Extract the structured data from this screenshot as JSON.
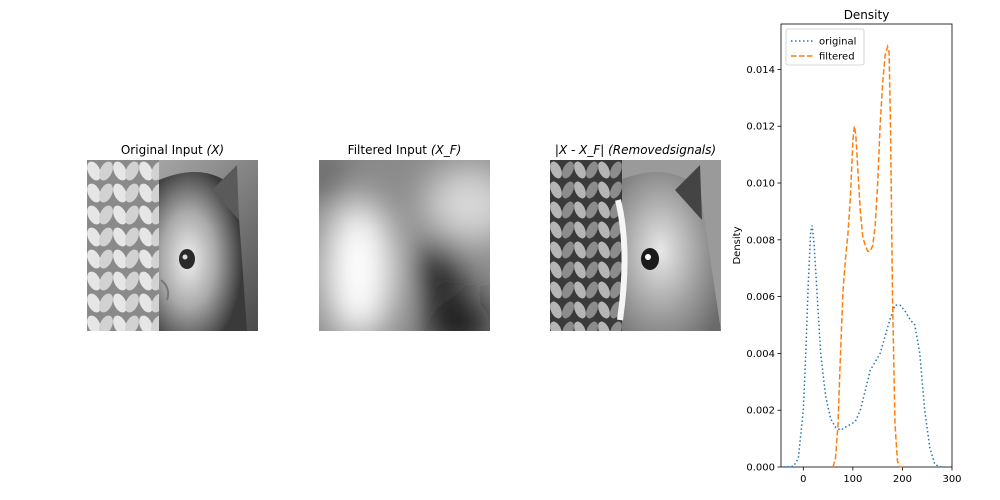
{
  "panels": [
    {
      "title": "Original Input ",
      "math": "(X)"
    },
    {
      "title": "Filtered Input ",
      "math": "(X_F)"
    },
    {
      "title": "",
      "math": "|X - X_F| (Removedsignals)"
    }
  ],
  "chart_data": {
    "type": "line",
    "title": "Density",
    "xlabel": "",
    "ylabel": "Density",
    "xlim": [
      -45,
      300
    ],
    "ylim": [
      0,
      0.0156
    ],
    "xticks": [
      0,
      100,
      200,
      300
    ],
    "yticks": [
      0.0,
      0.002,
      0.004,
      0.006,
      0.008,
      0.01,
      0.012,
      0.014
    ],
    "ytick_labels": [
      "0.000",
      "0.002",
      "0.004",
      "0.006",
      "0.008",
      "0.010",
      "0.012",
      "0.014"
    ],
    "legend_position": "upper-left",
    "grid": false,
    "series": [
      {
        "name": "original",
        "style": "dotted",
        "color": "#1f77b4",
        "x": [
          -40,
          -20,
          -10,
          0,
          5,
          10,
          15,
          18,
          22,
          28,
          35,
          45,
          55,
          65,
          75,
          85,
          95,
          105,
          115,
          125,
          135,
          145,
          155,
          165,
          175,
          185,
          195,
          205,
          215,
          225,
          235,
          245,
          255,
          265,
          275,
          285
        ],
        "y": [
          0.0,
          2e-05,
          0.0003,
          0.002,
          0.004,
          0.0065,
          0.0083,
          0.0085,
          0.0078,
          0.006,
          0.004,
          0.0025,
          0.0017,
          0.0014,
          0.0013,
          0.0014,
          0.0015,
          0.0016,
          0.002,
          0.0027,
          0.0034,
          0.0037,
          0.004,
          0.0046,
          0.0052,
          0.0057,
          0.0057,
          0.0055,
          0.0052,
          0.005,
          0.004,
          0.002,
          0.0007,
          0.0001,
          1e-05,
          0.0
        ]
      },
      {
        "name": "filtered",
        "style": "dashed",
        "color": "#ff7f0e",
        "x": [
          60,
          65,
          70,
          75,
          80,
          85,
          90,
          95,
          100,
          103,
          106,
          110,
          115,
          120,
          125,
          130,
          135,
          140,
          145,
          150,
          155,
          160,
          165,
          170,
          173,
          176,
          180,
          185,
          190,
          195,
          200
        ],
        "y": [
          0.0,
          0.0003,
          0.0015,
          0.004,
          0.0062,
          0.0073,
          0.0082,
          0.0095,
          0.0115,
          0.012,
          0.0117,
          0.0105,
          0.009,
          0.0081,
          0.0078,
          0.0076,
          0.0076,
          0.0078,
          0.0085,
          0.01,
          0.012,
          0.0135,
          0.0145,
          0.0148,
          0.0146,
          0.012,
          0.006,
          0.0015,
          0.0002,
          0.0,
          0.0
        ]
      }
    ]
  }
}
